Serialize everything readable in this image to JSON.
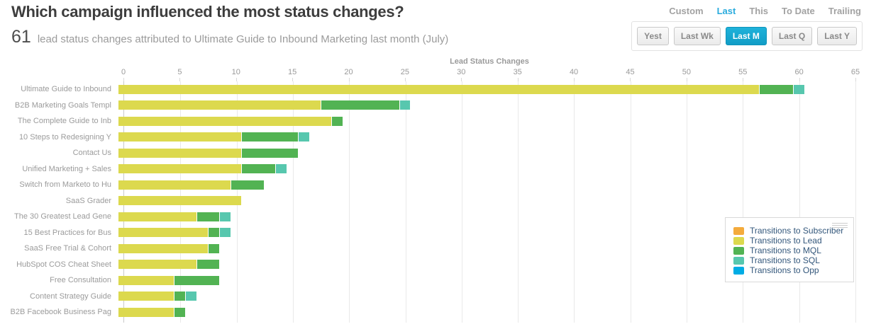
{
  "header": {
    "title": "Which campaign influenced the most status changes?",
    "metric_value": "61",
    "metric_caption": "lead status changes attributed to Ultimate Guide to Inbound Marketing last month (July)"
  },
  "controls": {
    "tabs": [
      {
        "label": "Custom",
        "active": false
      },
      {
        "label": "Last",
        "active": true
      },
      {
        "label": "This",
        "active": false
      },
      {
        "label": "To Date",
        "active": false
      },
      {
        "label": "Trailing",
        "active": false
      }
    ],
    "range_buttons": [
      {
        "label": "Yest",
        "active": false
      },
      {
        "label": "Last Wk",
        "active": false
      },
      {
        "label": "Last M",
        "active": true
      },
      {
        "label": "Last Q",
        "active": false
      },
      {
        "label": "Last Y",
        "active": false
      }
    ]
  },
  "colors": {
    "accent": "#29abdd",
    "active_button": "#13a3cb",
    "grid": "#e9e9e9",
    "axis_text": "#9a9a9a",
    "legend_text": "#33577b"
  },
  "chart_data": {
    "type": "bar",
    "stacked": true,
    "orientation": "horizontal",
    "title": "Lead Status Changes",
    "xlabel": "Lead Status Changes",
    "ylabel": "",
    "xlim": [
      0,
      65
    ],
    "xticks": [
      0,
      5,
      10,
      15,
      20,
      25,
      30,
      35,
      40,
      45,
      50,
      55,
      60,
      65
    ],
    "grid": true,
    "legend_position": "right-middle",
    "categories": [
      "Ultimate Guide to Inbound",
      "B2B Marketing Goals Templ",
      "The Complete Guide to Inb",
      "10 Steps to Redesigning Y",
      "Contact Us",
      "Unified Marketing + Sales",
      "Switch from Marketo to Hu",
      "SaaS Grader",
      "The 30 Greatest Lead Gene",
      "15 Best Practices for Bus",
      "SaaS Free Trial & Cohort",
      "HubSpot COS Cheat Sheet",
      "Free Consultation",
      "Content Strategy Guide",
      "B2B Facebook Business Pag"
    ],
    "series": [
      {
        "name": "Transitions to Subscriber",
        "color": "#f4ab3c",
        "values": [
          0,
          0,
          0,
          0,
          0,
          0,
          0,
          0,
          0,
          0,
          0,
          0,
          0,
          0,
          0
        ]
      },
      {
        "name": "Transitions to Lead",
        "color": "#dcd94e",
        "values": [
          57,
          18,
          19,
          11,
          11,
          11,
          10,
          11,
          7,
          8,
          8,
          7,
          5,
          5,
          5
        ]
      },
      {
        "name": "Transitions to MQL",
        "color": "#52b353",
        "values": [
          3,
          7,
          1,
          5,
          5,
          3,
          3,
          0,
          2,
          1,
          1,
          2,
          4,
          1,
          1
        ]
      },
      {
        "name": "Transitions to SQL",
        "color": "#57c7ae",
        "values": [
          1,
          1,
          0,
          1,
          0,
          1,
          0,
          0,
          1,
          1,
          0,
          0,
          0,
          1,
          0
        ]
      },
      {
        "name": "Transitions to Opp",
        "color": "#00ace4",
        "values": [
          0,
          0,
          0,
          0,
          0,
          0,
          0,
          0,
          0,
          0,
          0,
          0,
          0,
          0,
          0
        ]
      }
    ],
    "totals": [
      61,
      26,
      20,
      17,
      16,
      15,
      13,
      11,
      10,
      10,
      9,
      9,
      9,
      7,
      6
    ]
  }
}
